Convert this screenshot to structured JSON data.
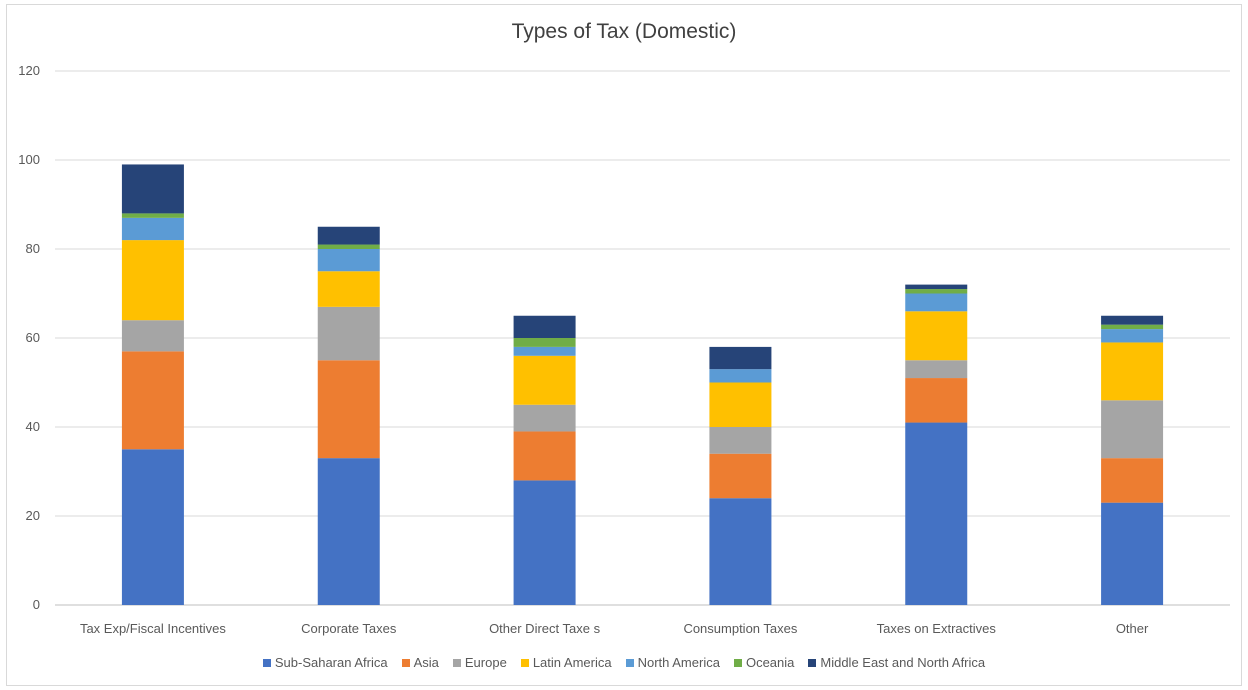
{
  "chart_data": {
    "type": "bar",
    "stacked": true,
    "title": "Types of Tax (Domestic)",
    "xlabel": "",
    "ylabel": "",
    "ylim": [
      0,
      120
    ],
    "yticks": [
      0,
      20,
      40,
      60,
      80,
      100,
      120
    ],
    "grid": true,
    "legend_position": "bottom",
    "categories": [
      "Tax Exp/Fiscal Incentives",
      "Corporate Taxes",
      "Other Direct Taxe s",
      "Consumption Taxes",
      "Taxes on Extractives",
      "Other"
    ],
    "series": [
      {
        "name": "Sub-Saharan Africa",
        "color": "#4472c4",
        "values": [
          35,
          33,
          28,
          24,
          41,
          23
        ]
      },
      {
        "name": "Asia",
        "color": "#ed7d31",
        "values": [
          22,
          22,
          11,
          10,
          10,
          10
        ]
      },
      {
        "name": "Europe",
        "color": "#a5a5a5",
        "values": [
          7,
          12,
          6,
          6,
          4,
          13
        ]
      },
      {
        "name": "Latin America",
        "color": "#ffc000",
        "values": [
          18,
          8,
          11,
          10,
          11,
          13
        ]
      },
      {
        "name": "North America",
        "color": "#5b9bd5",
        "values": [
          5,
          5,
          2,
          3,
          4,
          3
        ]
      },
      {
        "name": "Oceania",
        "color": "#70ad47",
        "values": [
          1,
          1,
          2,
          0,
          1,
          1
        ]
      },
      {
        "name": "Middle East and North Africa",
        "color": "#264478",
        "values": [
          11,
          4,
          5,
          5,
          1,
          2
        ]
      }
    ]
  }
}
